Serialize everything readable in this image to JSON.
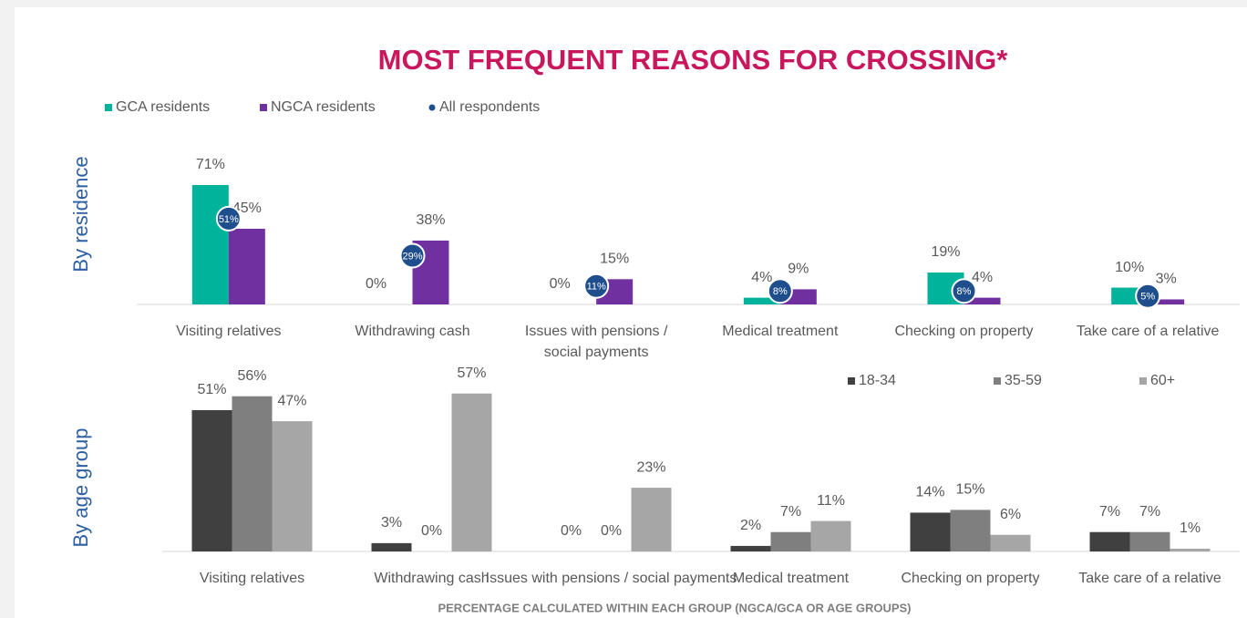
{
  "title": "MOST FREQUENT REASONS FOR CROSSING*",
  "footnote": "PERCENTAGE CALCULATED WITHIN EACH GROUP (NGCA/GCA OR AGE GROUPS)",
  "chart_data": [
    {
      "type": "bar",
      "panel_label": "By residence",
      "legend": "top-left",
      "categories": [
        "Visiting relatives",
        "Withdrawing cash",
        "Issues with pensions / social payments",
        "Medical treatment",
        "Checking on property",
        "Take care of a relative"
      ],
      "series": [
        {
          "name": "GCA residents",
          "color": "#00b39a",
          "values": [
            71,
            0,
            0,
            4,
            19,
            10
          ],
          "value_labels": [
            "71%",
            "0%",
            "0%",
            "4%",
            "19%",
            "10%"
          ]
        },
        {
          "name": "NGCA residents",
          "color": "#7030a0",
          "values": [
            45,
            38,
            15,
            9,
            4,
            3
          ],
          "value_labels": [
            "45%",
            "38%",
            "15%",
            "9%",
            "4%",
            "3%"
          ]
        },
        {
          "name": "All respondents",
          "color": "#1f4e8c",
          "marker": "dot",
          "values": [
            51,
            29,
            11,
            8,
            8,
            5
          ],
          "value_labels": [
            "51%",
            "29%",
            "11%",
            "8%",
            "8%",
            "5%"
          ]
        }
      ]
    },
    {
      "type": "bar",
      "panel_label": "By age group",
      "legend": "top-right",
      "categories": [
        "Visiting relatives",
        "Withdrawing cash",
        "Issues with pensions / social payments",
        "Medical treatment",
        "Checking on property",
        "Take care of a relative"
      ],
      "series": [
        {
          "name": "18-34",
          "color": "#404040",
          "values": [
            51,
            3,
            0,
            2,
            14,
            7
          ],
          "value_labels": [
            "51%",
            "3%",
            "0%",
            "2%",
            "14%",
            "7%"
          ]
        },
        {
          "name": "35-59",
          "color": "#7f7f7f",
          "values": [
            56,
            0,
            0,
            7,
            15,
            7
          ],
          "value_labels": [
            "56%",
            "0%",
            "0%",
            "7%",
            "15%",
            "7%"
          ]
        },
        {
          "name": "60+",
          "color": "#a6a6a6",
          "values": [
            47,
            57,
            23,
            11,
            6,
            1
          ],
          "value_labels": [
            "47%",
            "57%",
            "23%",
            "11%",
            "6%",
            "1%"
          ]
        }
      ]
    }
  ]
}
